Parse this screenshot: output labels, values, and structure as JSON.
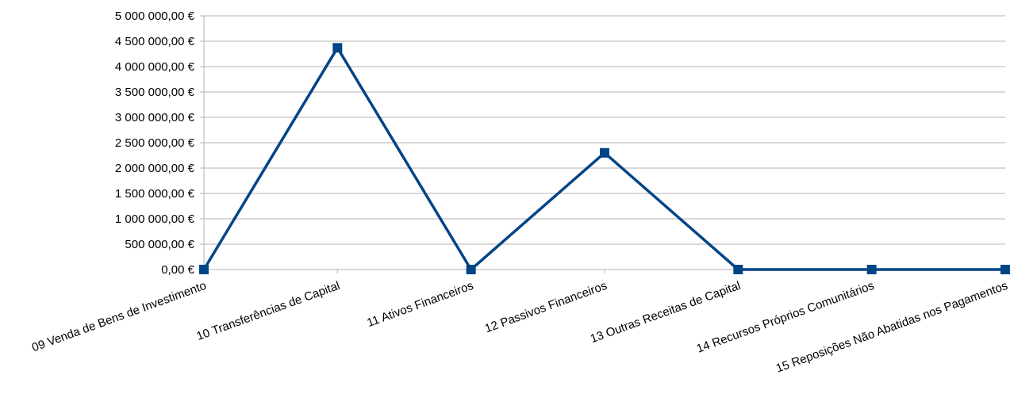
{
  "chart_data": {
    "type": "line",
    "title": "",
    "xlabel": "",
    "ylabel": "",
    "categories": [
      "09 Venda de Bens de Investimento",
      "10 Transferências de Capital",
      "11 Ativos Financeiros",
      "12 Passivos Financeiros",
      "13 Outras Receitas de Capital",
      "14 Recursos Próprios Comunitários",
      "15 Reposições Não Abatidas nos Pagamentos"
    ],
    "series": [
      {
        "values": [
          0,
          4370000,
          0,
          2300000,
          0,
          0,
          0
        ],
        "color": "#004586"
      }
    ],
    "ylim": [
      0,
      5000000
    ],
    "yticks": [
      {
        "value": 0,
        "label": "0,00 €"
      },
      {
        "value": 500000,
        "label": "500 000,00 €"
      },
      {
        "value": 1000000,
        "label": "1 000 000,00 €"
      },
      {
        "value": 1500000,
        "label": "1 500 000,00 €"
      },
      {
        "value": 2000000,
        "label": "2 000 000,00 €"
      },
      {
        "value": 2500000,
        "label": "2 500 000,00 €"
      },
      {
        "value": 3000000,
        "label": "3 000 000,00 €"
      },
      {
        "value": 3500000,
        "label": "3 500 000,00 €"
      },
      {
        "value": 4000000,
        "label": "4 000 000,00 €"
      },
      {
        "value": 4500000,
        "label": "4 500 000,00 €"
      },
      {
        "value": 5000000,
        "label": "5 000 000,00 €"
      }
    ],
    "grid": true,
    "legend": "none",
    "marker": "square"
  }
}
